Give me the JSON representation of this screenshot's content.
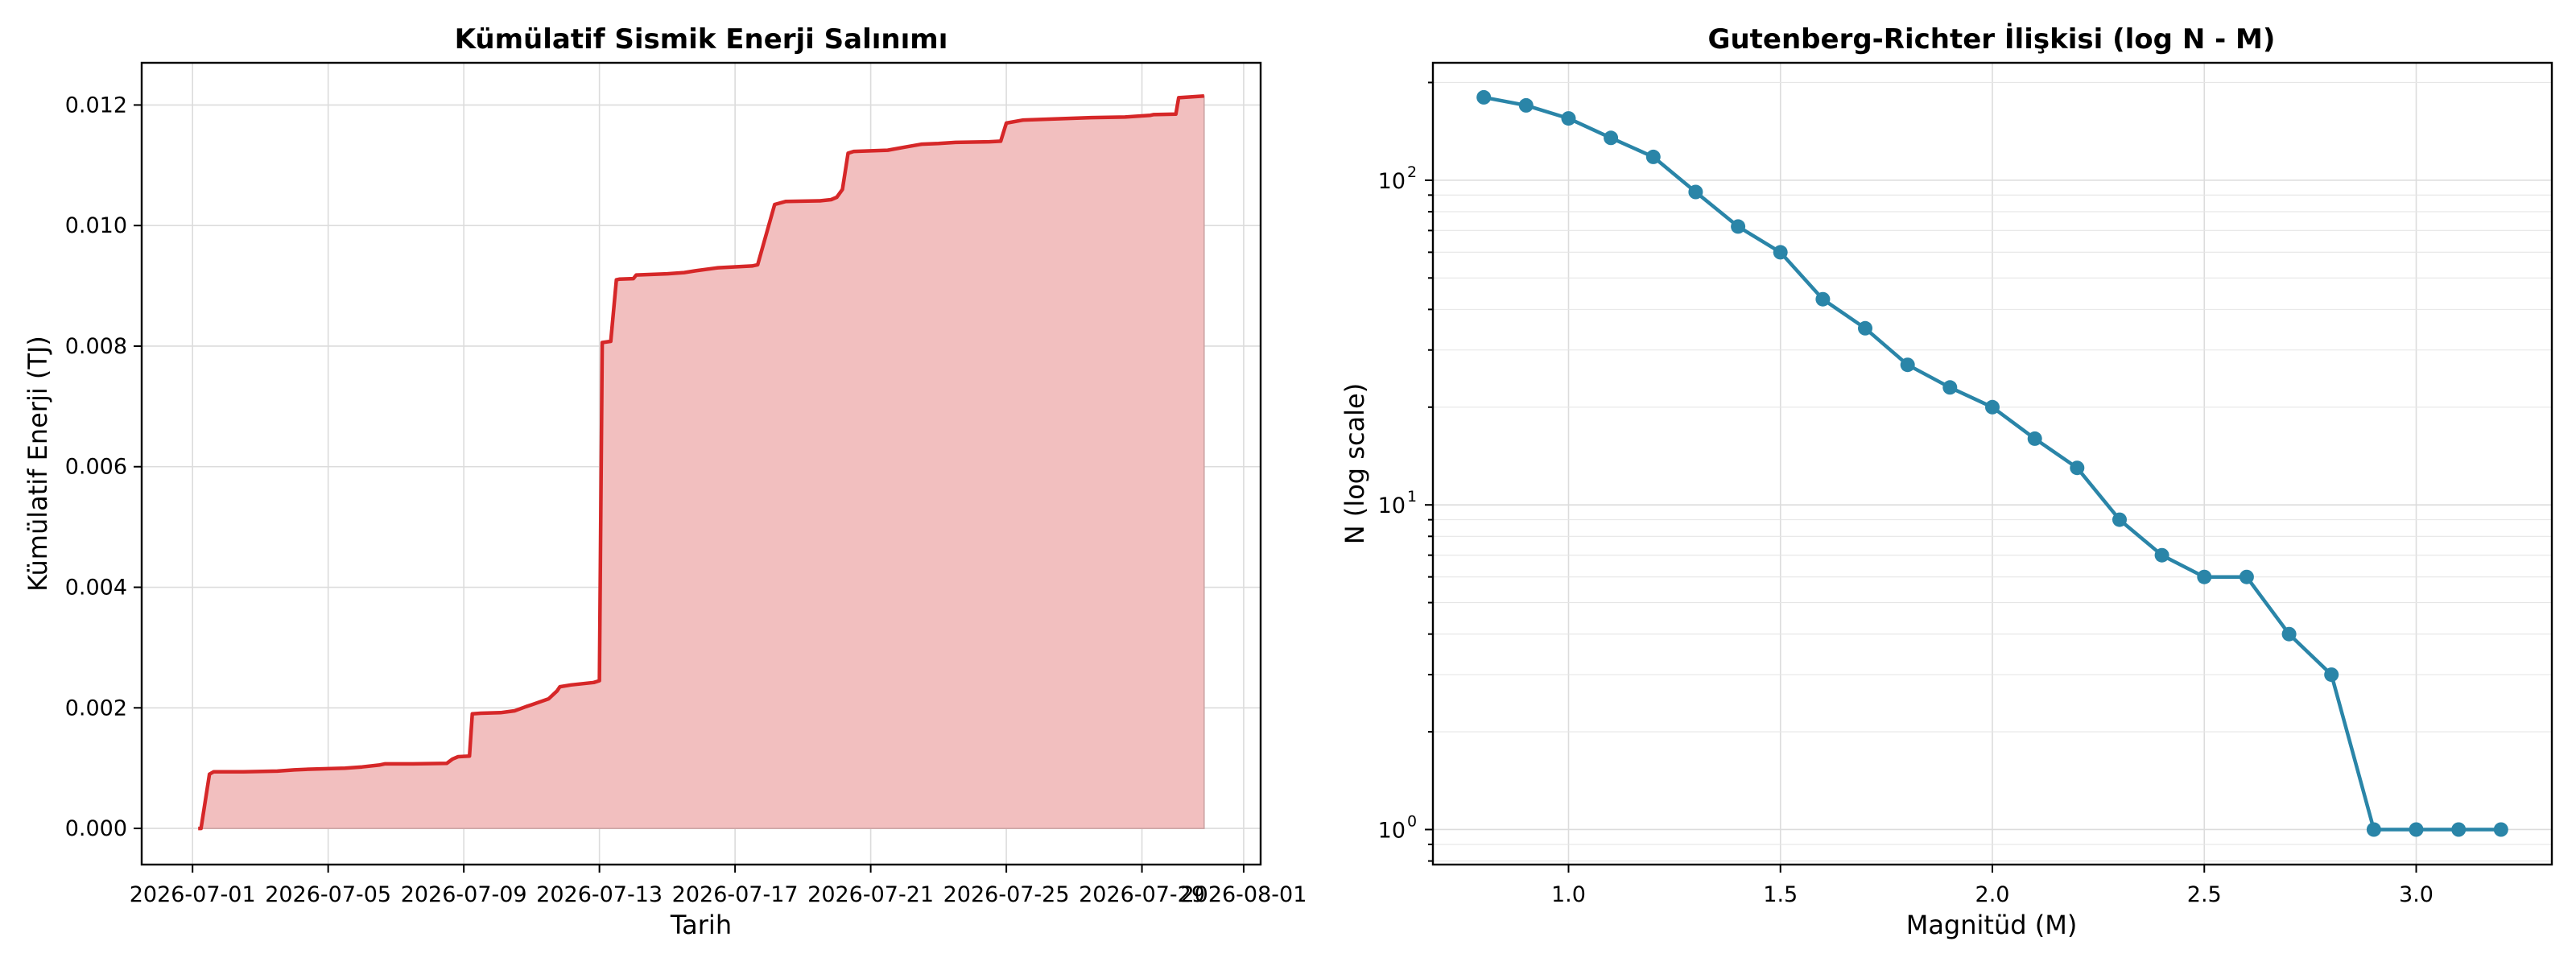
{
  "chart_data": [
    {
      "type": "area",
      "title": "Kümülatif Sismik Enerji Salınımı",
      "xlabel": "Tarih",
      "ylabel": "Kümülatif Enerji (TJ)",
      "x_ticks": [
        "2026-07-01",
        "2026-07-05",
        "2026-07-09",
        "2026-07-13",
        "2026-07-17",
        "2026-07-21",
        "2026-07-25",
        "2026-07-29",
        "2026-08-01"
      ],
      "y_ticks": [
        "0.000",
        "0.002",
        "0.004",
        "0.006",
        "0.008",
        "0.010",
        "0.012"
      ],
      "xlim": [
        "2026-06-29T12:00",
        "2026-08-01T12:00"
      ],
      "ylim": [
        -0.0006,
        0.0127
      ],
      "grid": true,
      "line_color": "#d62728",
      "fill_color": "#f2bfbf",
      "series": [
        {
          "x": [
            "2026-07-01T04:00",
            "2026-07-01T06:00",
            "2026-07-01T10:00",
            "2026-07-01T12:00",
            "2026-07-01T15:00",
            "2026-07-01T20:00",
            "2026-07-02T00:00",
            "2026-07-02T12:00",
            "2026-07-03T12:00",
            "2026-07-04T00:00",
            "2026-07-04T08:00",
            "2026-07-05T12:00",
            "2026-07-06T00:00",
            "2026-07-06T12:00",
            "2026-07-06T16:00",
            "2026-07-07T12:00",
            "2026-07-08T12:00",
            "2026-07-08T16:00",
            "2026-07-08T20:00",
            "2026-07-09T04:00",
            "2026-07-09T06:00",
            "2026-07-09T12:00",
            "2026-07-10T02:00",
            "2026-07-10T12:00",
            "2026-07-10T20:00",
            "2026-07-11T00:00",
            "2026-07-11T12:00",
            "2026-07-11T18:00",
            "2026-07-11T20:00",
            "2026-07-12T04:00",
            "2026-07-12T12:00",
            "2026-07-12T20:00",
            "2026-07-13T00:00",
            "2026-07-13T02:00",
            "2026-07-13T08:00",
            "2026-07-13T12:00",
            "2026-07-13T14:00",
            "2026-07-14T00:00",
            "2026-07-14T02:00",
            "2026-07-15T00:00",
            "2026-07-15T12:00",
            "2026-07-15T20:00",
            "2026-07-16T12:00",
            "2026-07-17T12:00",
            "2026-07-17T16:00",
            "2026-07-18T04:00",
            "2026-07-18T12:00",
            "2026-07-19T12:00",
            "2026-07-19T20:00",
            "2026-07-20T00:00",
            "2026-07-20T04:00",
            "2026-07-20T08:00",
            "2026-07-20T12:00",
            "2026-07-21T12:00",
            "2026-07-22T00:00",
            "2026-07-22T12:00",
            "2026-07-23T00:00",
            "2026-07-23T12:00",
            "2026-07-24T12:00",
            "2026-07-24T20:00",
            "2026-07-25T00:00",
            "2026-07-25T12:00",
            "2026-07-26T00:00",
            "2026-07-26T12:00",
            "2026-07-27T12:00",
            "2026-07-28T12:00",
            "2026-07-29T06:00",
            "2026-07-29T08:00",
            "2026-07-30T00:00",
            "2026-07-30T02:00",
            "2026-07-30T20:00"
          ],
          "y": [
            0.0,
            0.0,
            0.0006,
            0.0009,
            0.00094,
            0.00094,
            0.00094,
            0.00094,
            0.00095,
            0.00097,
            0.00098,
            0.001,
            0.00102,
            0.00105,
            0.00107,
            0.00107,
            0.00108,
            0.00115,
            0.00119,
            0.0012,
            0.0019,
            0.00191,
            0.00192,
            0.00195,
            0.00202,
            0.00205,
            0.00215,
            0.00228,
            0.00235,
            0.00238,
            0.0024,
            0.00242,
            0.00245,
            0.00806,
            0.00808,
            0.0091,
            0.00911,
            0.00912,
            0.00918,
            0.0092,
            0.00922,
            0.00925,
            0.0093,
            0.00933,
            0.00935,
            0.01035,
            0.0104,
            0.01041,
            0.01043,
            0.01047,
            0.0106,
            0.0112,
            0.01123,
            0.01125,
            0.0113,
            0.01135,
            0.01136,
            0.01138,
            0.01139,
            0.0114,
            0.0117,
            0.01175,
            0.01176,
            0.01177,
            0.01179,
            0.0118,
            0.01183,
            0.01184,
            0.01185,
            0.01212,
            0.01215
          ]
        }
      ]
    },
    {
      "type": "line",
      "title": "Gutenberg-Richter İlişkisi (log N - M)",
      "xlabel": "Magnitüd (M)",
      "ylabel": "N (log scale)",
      "x_ticks": [
        "1.0",
        "1.5",
        "2.0",
        "2.5",
        "3.0"
      ],
      "y_ticks": [
        {
          "base": "10",
          "exp": "0"
        },
        {
          "base": "10",
          "exp": "1"
        },
        {
          "base": "10",
          "exp": "2"
        }
      ],
      "y_scale": "log",
      "xlim": [
        0.68,
        3.32
      ],
      "ylim": [
        0.78,
        230
      ],
      "grid": true,
      "line_color": "#2a85a8",
      "series": [
        {
          "x": [
            0.8,
            0.9,
            1.0,
            1.1,
            1.2,
            1.3,
            1.4,
            1.5,
            1.6,
            1.7,
            1.8,
            1.9,
            2.0,
            2.1,
            2.2,
            2.3,
            2.4,
            2.5,
            2.6,
            2.7,
            2.8,
            2.9,
            3.0,
            3.1,
            3.2
          ],
          "y": [
            180,
            170,
            155,
            135,
            118,
            92,
            72,
            60,
            43,
            35,
            27,
            23,
            20,
            16,
            13,
            9,
            7,
            6,
            6,
            4,
            3,
            1,
            1,
            1,
            1
          ]
        }
      ]
    }
  ]
}
